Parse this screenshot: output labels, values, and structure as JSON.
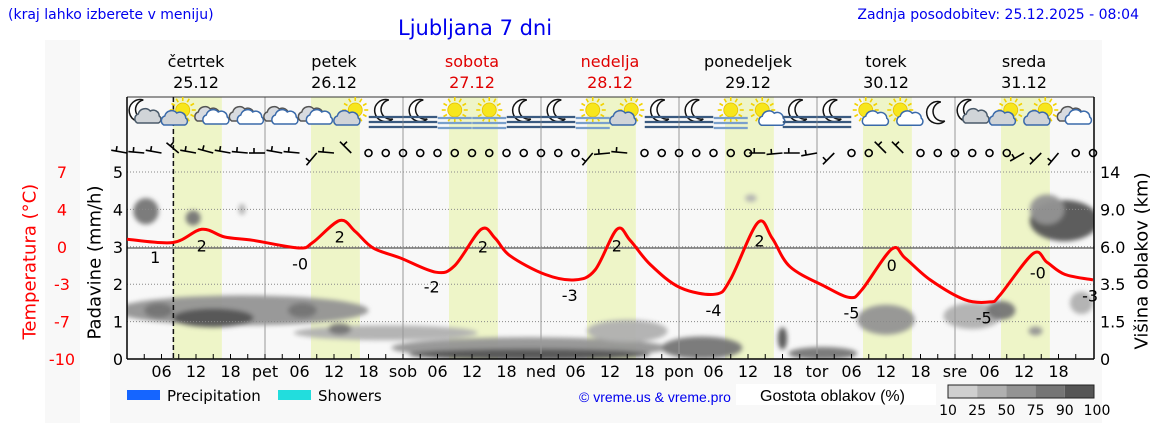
{
  "header": {
    "hint": "(kraj lahko izberete v meniju)",
    "title": "Ljubljana 7 dni",
    "updated": "Zadnja posodobitev: 25.12.2025 - 08:04"
  },
  "days": [
    {
      "name": "četrtek",
      "date": "25.12",
      "weekend": false
    },
    {
      "name": "petek",
      "date": "26.12",
      "weekend": false
    },
    {
      "name": "sobota",
      "date": "27.12",
      "weekend": true
    },
    {
      "name": "nedelja",
      "date": "28.12",
      "weekend": true
    },
    {
      "name": "ponedeljek",
      "date": "29.12",
      "weekend": false
    },
    {
      "name": "torek",
      "date": "30.12",
      "weekend": false
    },
    {
      "name": "sreda",
      "date": "31.12",
      "weekend": false
    }
  ],
  "colors": {
    "temperature": "#ff0000",
    "weekend": "#e00000",
    "link": "#0000ee",
    "daylight": "#eef5c8"
  },
  "chart_data": {
    "type": "line",
    "title": "Ljubljana 7 dni",
    "x_hour_labels": [
      "06",
      "12",
      "18"
    ],
    "x_day_labels": [
      "",
      "pet",
      "sob",
      "ned",
      "pon",
      "tor",
      "sre"
    ],
    "temperature_axis": {
      "label": "Temperatura (°C)",
      "ticks": [
        "7",
        "4",
        "0",
        "-3",
        "-7",
        "-10"
      ]
    },
    "precip_axis": {
      "label": "Padavine (mm/h)",
      "ticks": [
        "5",
        "4",
        "3",
        "2",
        "1",
        "0"
      ],
      "ylim": [
        0,
        5
      ]
    },
    "cloud_height_axis": {
      "label": "Višina oblakov (km)",
      "ticks": [
        "14",
        "9.0",
        "6.0",
        "3.5",
        "1.5",
        "0"
      ]
    },
    "grid": true,
    "now": "08:04",
    "daylight": {
      "start_hour": 8.0,
      "end_hour": 16.5
    },
    "temperature": {
      "hours": [
        0,
        8,
        13,
        17,
        21.9,
        29.9,
        32.3,
        37,
        39.7,
        42.8,
        47.5,
        53.7,
        57,
        61.6,
        64,
        66.6,
        72.7,
        77.9,
        81.4,
        85.2,
        87.5,
        91,
        96.2,
        102.3,
        104.9,
        109.7,
        112.2,
        115.3,
        121.4,
        125.7,
        127.8,
        133,
        135.3,
        139.7,
        145.7,
        150.1,
        151.8,
        157.6,
        160,
        163.1,
        168
      ],
      "values": [
        0.8,
        0.5,
        1.7,
        1.0,
        0.7,
        0.0,
        0.5,
        2.5,
        1.5,
        0.0,
        -0.9,
        -2.2,
        -1.6,
        1.7,
        0.9,
        -0.7,
        -2.4,
        -2.9,
        -2.0,
        1.7,
        0.7,
        -1.5,
        -3.6,
        -4.2,
        -2.9,
        2.3,
        0.9,
        -1.7,
        -3.5,
        -4.5,
        -3.8,
        -0.1,
        -0.9,
        -2.9,
        -4.7,
        -4.9,
        -4.3,
        -0.5,
        -1.3,
        -2.4,
        -2.9
      ],
      "labels": [
        {
          "hour": 4.9,
          "text": "1"
        },
        {
          "hour": 13,
          "text": "2"
        },
        {
          "hour": 30.1,
          "text": "-0"
        },
        {
          "hour": 37,
          "text": "2"
        },
        {
          "hour": 53,
          "text": "-2"
        },
        {
          "hour": 61.9,
          "text": "2"
        },
        {
          "hour": 77,
          "text": "-3"
        },
        {
          "hour": 85.2,
          "text": "2"
        },
        {
          "hour": 102,
          "text": "-4"
        },
        {
          "hour": 110,
          "text": "2"
        },
        {
          "hour": 126,
          "text": "-5"
        },
        {
          "hour": 133,
          "text": "0"
        },
        {
          "hour": 149,
          "text": "-5"
        },
        {
          "hour": 158.4,
          "text": "-0"
        },
        {
          "hour": 167.5,
          "text": "-3"
        }
      ]
    },
    "cloud_density": [
      {
        "hour": 3.3,
        "level": 3.95,
        "dh": 2.2,
        "dl": 0.35,
        "density": 75
      },
      {
        "hour": 11.5,
        "level": 3.77,
        "dh": 1.3,
        "dl": 0.2,
        "density": 75
      },
      {
        "hour": 20,
        "level": 4.0,
        "dh": 0.6,
        "dl": 0.15,
        "density": 25
      },
      {
        "hour": 20,
        "level": 1.3,
        "dh": 22,
        "dl": 0.4,
        "density": 50
      },
      {
        "hour": 5.5,
        "level": 1.3,
        "dh": 2.5,
        "dl": 0.2,
        "density": 75
      },
      {
        "hour": 15,
        "level": 1.1,
        "dh": 7,
        "dl": 0.25,
        "density": 90
      },
      {
        "hour": 30.5,
        "level": 1.3,
        "dh": 2.5,
        "dl": 0.2,
        "density": 75
      },
      {
        "hour": 45,
        "level": 0.7,
        "dh": 16,
        "dl": 0.2,
        "density": 25
      },
      {
        "hour": 37,
        "level": 0.8,
        "dh": 2,
        "dl": 0.15,
        "density": 75
      },
      {
        "hour": 70,
        "level": 0.3,
        "dh": 24,
        "dl": 0.28,
        "density": 50
      },
      {
        "hour": 70,
        "level": 0.12,
        "dh": 21,
        "dl": 0.15,
        "density": 90
      },
      {
        "hour": 87,
        "level": 0.75,
        "dh": 7,
        "dl": 0.3,
        "density": 25
      },
      {
        "hour": 100,
        "level": 0.3,
        "dh": 7,
        "dl": 0.3,
        "density": 75
      },
      {
        "hour": 108.5,
        "level": 4.3,
        "dh": 1,
        "dl": 0.1,
        "density": 25
      },
      {
        "hour": 114,
        "level": 0.55,
        "dh": 0.8,
        "dl": 0.3,
        "density": 90
      },
      {
        "hour": 121,
        "level": 0.15,
        "dh": 6,
        "dl": 0.17,
        "density": 75
      },
      {
        "hour": 132,
        "level": 1.05,
        "dh": 5,
        "dl": 0.4,
        "density": 50
      },
      {
        "hour": 147,
        "level": 1.15,
        "dh": 5,
        "dl": 0.35,
        "density": 25
      },
      {
        "hour": 152,
        "level": 1.3,
        "dh": 2.5,
        "dl": 0.25,
        "density": 75
      },
      {
        "hour": 158,
        "level": 0.75,
        "dh": 1.2,
        "dl": 0.12,
        "density": 50
      },
      {
        "hour": 163,
        "level": 3.7,
        "dh": 6,
        "dl": 0.55,
        "density": 90
      },
      {
        "hour": 160,
        "level": 4.0,
        "dh": 3,
        "dl": 0.4,
        "density": 50
      },
      {
        "hour": 166,
        "level": 1.5,
        "dh": 2,
        "dl": 0.3,
        "density": 25
      }
    ]
  },
  "weather_icons": [
    "moon-cloud",
    "sun-cloud",
    "cloud",
    "cloud",
    "cloud",
    "cloud",
    "sun-cloud",
    "moon-fog",
    "moon-fog",
    "sun-fog",
    "sun-fog",
    "moon-fog",
    "moon-fog",
    "sun-fog",
    "sun-cloud",
    "moon-fog",
    "moon-fog",
    "sun-fog",
    "sun-small-cloud",
    "moon-fog",
    "moon-fog",
    "sun-small-cloud",
    "sun-small-cloud",
    "moon",
    "moon-cloud",
    "sun-cloud",
    "sun-cloud",
    "cloud"
  ],
  "wind": [
    280,
    275,
    280,
    310,
    280,
    285,
    280,
    275,
    270,
    280,
    275,
    220,
    275,
    315,
    "calm",
    "calm",
    "calm",
    "calm",
    "calm",
    "calm",
    "calm",
    "calm",
    "calm",
    "calm",
    "calm",
    "calm",
    "calm",
    220,
    265,
    275,
    "calm",
    "calm",
    "calm",
    "calm",
    "calm",
    "calm",
    "calm",
    270,
    265,
    270,
    260,
    225,
    "calm",
    "calm",
    315,
    315,
    "calm",
    "calm",
    "calm",
    "calm",
    "calm",
    "calm",
    240,
    225,
    220,
    "calm",
    "calm"
  ],
  "legend": {
    "precipitation": {
      "label": "Precipitation",
      "color": "#1565ff"
    },
    "showers": {
      "label": "Showers",
      "color": "#22dddd"
    },
    "copyright": "© vreme.us & vreme.pro",
    "cloud_density_title": "Gostota oblakov (%)",
    "density_labels": [
      "10",
      "25",
      "50",
      "75",
      "90",
      "100"
    ],
    "density_colors": [
      "#cfcfcf",
      "#b0b0b0",
      "#939393",
      "#757575",
      "#555555"
    ]
  }
}
